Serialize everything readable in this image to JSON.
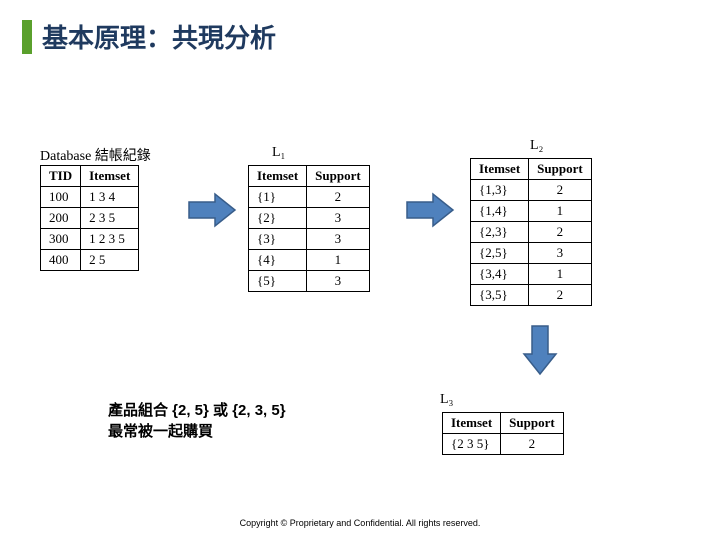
{
  "title": "基本原理：共現分析",
  "labels": {
    "database": "Database",
    "database_cjk": "結帳紀錄",
    "L1": "L₁",
    "L2": "L₂",
    "L3": "L₃"
  },
  "database_table": {
    "headers": [
      "TID",
      "Itemset"
    ],
    "rows": [
      [
        "100",
        "1 3 4"
      ],
      [
        "200",
        "2 3 5"
      ],
      [
        "300",
        "1 2 3 5"
      ],
      [
        "400",
        "2 5"
      ]
    ]
  },
  "L1_table": {
    "headers": [
      "Itemset",
      "Support"
    ],
    "rows": [
      [
        "{1}",
        "2"
      ],
      [
        "{2}",
        "3"
      ],
      [
        "{3}",
        "3"
      ],
      [
        "{4}",
        "1"
      ],
      [
        "{5}",
        "3"
      ]
    ]
  },
  "L2_table": {
    "headers": [
      "Itemset",
      "Support"
    ],
    "rows": [
      [
        "{1,3}",
        "2"
      ],
      [
        "{1,4}",
        "1"
      ],
      [
        "{2,3}",
        "2"
      ],
      [
        "{2,5}",
        "3"
      ],
      [
        "{3,4}",
        "1"
      ],
      [
        "{3,5}",
        "2"
      ]
    ]
  },
  "L3_table": {
    "headers": [
      "Itemset",
      "Support"
    ],
    "rows": [
      [
        "{2 3 5}",
        "2"
      ]
    ]
  },
  "conclusion": {
    "line1": "產品組合 {2, 5} 或 {2, 3, 5}",
    "line2": "最常被一起購買"
  },
  "footer": "Copyright © Proprietary and Confidential. All rights reserved.",
  "style": {
    "accent_color": "#5aa02c",
    "title_color": "#1f3a5f",
    "arrow_fill": "#4f81bd",
    "arrow_stroke": "#385d8a"
  }
}
